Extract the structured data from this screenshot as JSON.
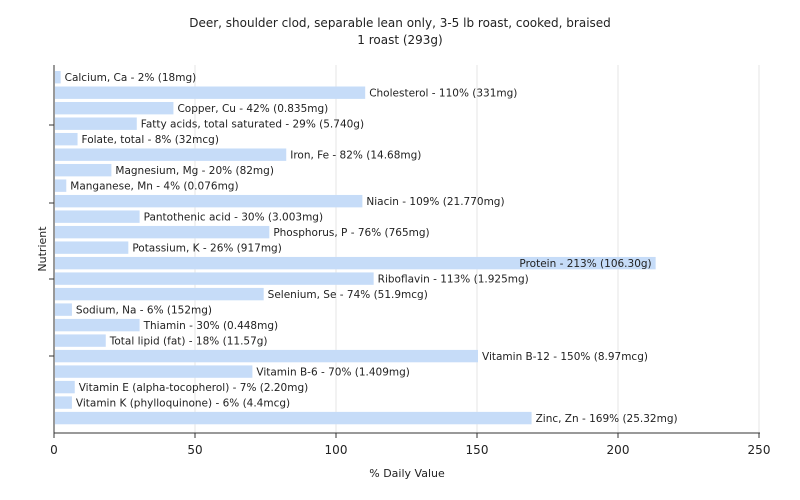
{
  "chart_data": {
    "type": "bar",
    "orientation": "horizontal",
    "title": "Deer, shoulder clod, separable lean only, 3-5 lb roast, cooked, braised",
    "subtitle": "1 roast (293g)",
    "xlabel": "% Daily Value",
    "ylabel": "Nutrient",
    "xlim": [
      0,
      250
    ],
    "xticks": [
      0,
      50,
      100,
      150,
      200,
      250
    ],
    "grid": true,
    "bar_color": "#c6dcf8",
    "categories": [
      "Calcium, Ca",
      "Cholesterol",
      "Copper, Cu",
      "Fatty acids, total saturated",
      "Folate, total",
      "Iron, Fe",
      "Magnesium, Mg",
      "Manganese, Mn",
      "Niacin",
      "Pantothenic acid",
      "Phosphorus, P",
      "Potassium, K",
      "Protein",
      "Riboflavin",
      "Selenium, Se",
      "Sodium, Na",
      "Thiamin",
      "Total lipid (fat)",
      "Vitamin B-12",
      "Vitamin B-6",
      "Vitamin E (alpha-tocopherol)",
      "Vitamin K (phylloquinone)",
      "Zinc, Zn"
    ],
    "values": [
      2,
      110,
      42,
      29,
      8,
      82,
      20,
      4,
      109,
      30,
      76,
      26,
      213,
      113,
      74,
      6,
      30,
      18,
      150,
      70,
      7,
      6,
      169
    ],
    "labels": [
      "Calcium, Ca - 2% (18mg)",
      "Cholesterol - 110% (331mg)",
      "Copper, Cu - 42% (0.835mg)",
      "Fatty acids, total saturated - 29% (5.740g)",
      "Folate, total - 8% (32mcg)",
      "Iron, Fe - 82% (14.68mg)",
      "Magnesium, Mg - 20% (82mg)",
      "Manganese, Mn - 4% (0.076mg)",
      "Niacin - 109% (21.770mg)",
      "Pantothenic acid - 30% (3.003mg)",
      "Phosphorus, P - 76% (765mg)",
      "Potassium, K - 26% (917mg)",
      "Protein - 213% (106.30g)",
      "Riboflavin - 113% (1.925mg)",
      "Selenium, Se - 74% (51.9mcg)",
      "Sodium, Na - 6% (152mg)",
      "Thiamin - 30% (0.448mg)",
      "Total lipid (fat) - 18% (11.57g)",
      "Vitamin B-12 - 150% (8.97mcg)",
      "Vitamin B-6 - 70% (1.409mg)",
      "Vitamin E (alpha-tocopherol) - 7% (2.20mg)",
      "Vitamin K (phylloquinone) - 6% (4.4mcg)",
      "Zinc, Zn - 169% (25.32mg)"
    ]
  }
}
